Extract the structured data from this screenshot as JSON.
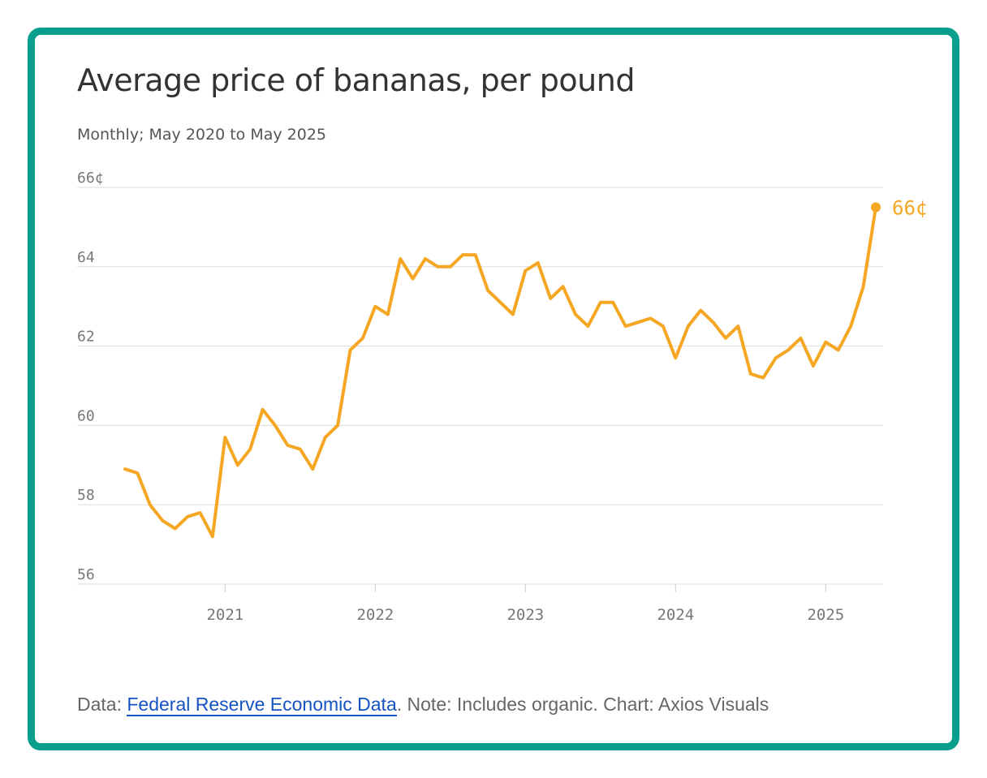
{
  "colors": {
    "accent_border": "#0a9f8c",
    "series_line": "#f5a623",
    "gridline": "#dddddd",
    "link": "#1553c2"
  },
  "title": "Average price of bananas, per pound",
  "subtitle": "Monthly; May 2020 to May 2025",
  "footer": {
    "prefix": "Data: ",
    "source_link": "Federal Reserve Economic Data",
    "suffix": ". Note: Includes organic. Chart: Axios Visuals"
  },
  "chart_data": {
    "type": "line",
    "title": "Average price of bananas, per pound",
    "subtitle": "Monthly; May 2020 to May 2025",
    "xlabel": "",
    "ylabel": "",
    "y_unit": "¢",
    "ylim": [
      56,
      66
    ],
    "y_ticks": [
      56,
      58,
      60,
      62,
      64,
      66
    ],
    "y_tick_labels": [
      "56",
      "58",
      "60",
      "62",
      "64",
      "66¢"
    ],
    "x_ticks": [
      "2021-01",
      "2022-01",
      "2023-01",
      "2024-01",
      "2025-01"
    ],
    "x_tick_labels": [
      "2021",
      "2022",
      "2023",
      "2024",
      "2025"
    ],
    "grid": true,
    "legend": "none",
    "end_label": "66¢",
    "series": [
      {
        "x": [
          "2020-05",
          "2020-06",
          "2020-07",
          "2020-08",
          "2020-09",
          "2020-10",
          "2020-11",
          "2020-12",
          "2021-01",
          "2021-02",
          "2021-03",
          "2021-04",
          "2021-05",
          "2021-06",
          "2021-07",
          "2021-08",
          "2021-09",
          "2021-10",
          "2021-11",
          "2021-12",
          "2022-01",
          "2022-02",
          "2022-03",
          "2022-04",
          "2022-05",
          "2022-06",
          "2022-07",
          "2022-08",
          "2022-09",
          "2022-10",
          "2022-11",
          "2022-12",
          "2023-01",
          "2023-02",
          "2023-03",
          "2023-04",
          "2023-05",
          "2023-06",
          "2023-07",
          "2023-08",
          "2023-09",
          "2023-10",
          "2023-11",
          "2023-12",
          "2024-01",
          "2024-02",
          "2024-03",
          "2024-04",
          "2024-05",
          "2024-06",
          "2024-07",
          "2024-08",
          "2024-09",
          "2024-10",
          "2024-11",
          "2024-12",
          "2025-01",
          "2025-02",
          "2025-03",
          "2025-04",
          "2025-05"
        ],
        "values": [
          58.9,
          58.8,
          58.0,
          57.6,
          57.4,
          57.7,
          57.8,
          57.2,
          59.7,
          59.0,
          59.4,
          60.4,
          60.0,
          59.5,
          59.4,
          58.9,
          59.7,
          60.0,
          61.9,
          62.2,
          63.0,
          62.8,
          64.2,
          63.7,
          64.2,
          64.0,
          64.0,
          64.3,
          64.3,
          63.4,
          63.1,
          62.8,
          63.9,
          64.1,
          63.2,
          63.5,
          62.8,
          62.5,
          63.1,
          63.1,
          62.5,
          62.6,
          62.7,
          62.5,
          61.7,
          62.5,
          62.9,
          62.6,
          62.2,
          62.5,
          61.3,
          61.2,
          61.7,
          61.9,
          62.2,
          61.5,
          62.1,
          61.9,
          62.5,
          63.5,
          65.5
        ]
      }
    ]
  }
}
